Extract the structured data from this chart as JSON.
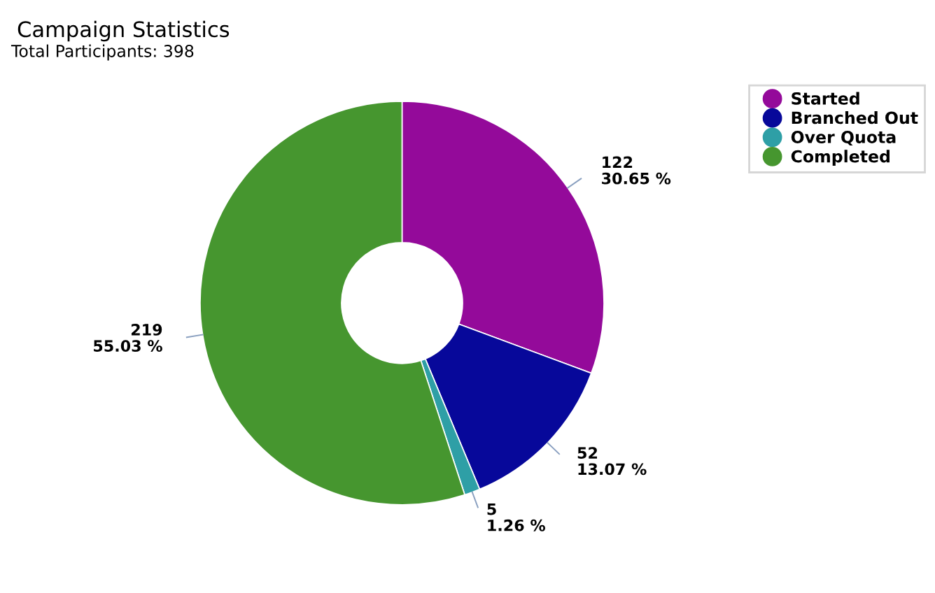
{
  "chart_data": {
    "type": "donut",
    "title": "Campaign Statistics",
    "subtitle": "Total Participants: 398",
    "categories": [
      "Started",
      "Branched Out",
      "Over Quota",
      "Completed"
    ],
    "values": [
      122,
      52,
      5,
      219
    ],
    "colors": [
      "#940a9a",
      "#07089a",
      "#2e9fa6",
      "#46962f"
    ],
    "value_labels": [
      "122\n30.65 %",
      "52\n13.07 %",
      "5\n1.26 %",
      "219\n55.03 %"
    ],
    "legend": "top right"
  }
}
